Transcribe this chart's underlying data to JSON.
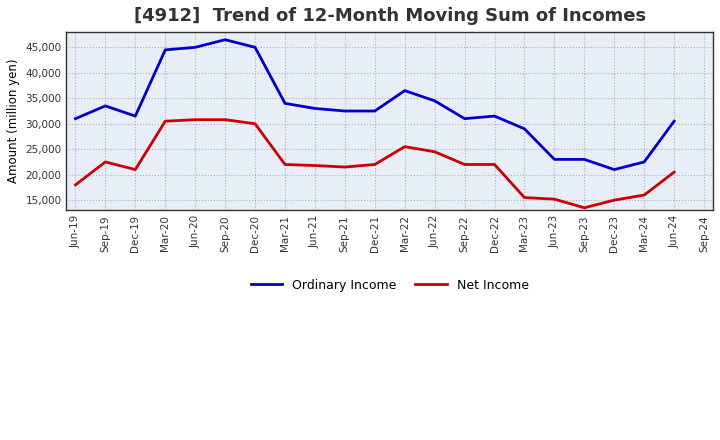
{
  "title": "[4912]  Trend of 12-Month Moving Sum of Incomes",
  "ylabel": "Amount (million yen)",
  "x_labels": [
    "Jun-19",
    "Sep-19",
    "Dec-19",
    "Mar-20",
    "Jun-20",
    "Sep-20",
    "Dec-20",
    "Mar-21",
    "Jun-21",
    "Sep-21",
    "Dec-21",
    "Mar-22",
    "Jun-22",
    "Sep-22",
    "Dec-22",
    "Mar-23",
    "Jun-23",
    "Sep-23",
    "Dec-23",
    "Mar-24",
    "Jun-24",
    "Sep-24"
  ],
  "ordinary_income": [
    31000,
    33500,
    31500,
    44500,
    45000,
    46500,
    45000,
    34000,
    33000,
    32500,
    32500,
    36500,
    34500,
    31000,
    31500,
    29000,
    23000,
    23000,
    21000,
    22500,
    30500,
    null
  ],
  "net_income": [
    18000,
    22500,
    21000,
    30500,
    30800,
    30800,
    30000,
    22000,
    21800,
    21500,
    22000,
    25500,
    24500,
    22000,
    22000,
    15500,
    15200,
    13500,
    15000,
    16000,
    20500,
    null
  ],
  "ordinary_income_color": "#0000cc",
  "net_income_color": "#cc0000",
  "ylim": [
    13000,
    48000
  ],
  "yticks": [
    15000,
    20000,
    25000,
    30000,
    35000,
    40000,
    45000
  ],
  "background_color": "#ffffff",
  "plot_bg_color": "#e8eef8",
  "grid_color": "#888888",
  "title_fontsize": 13,
  "legend_labels": [
    "Ordinary Income",
    "Net Income"
  ],
  "line_width": 2.0
}
